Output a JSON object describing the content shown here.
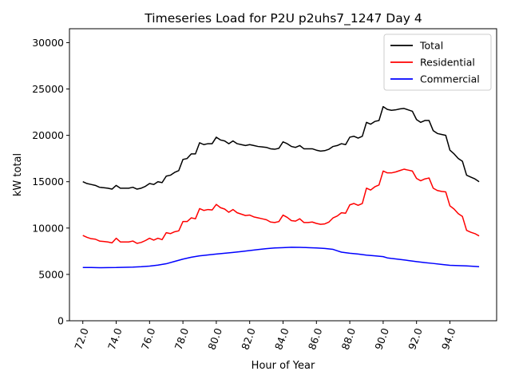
{
  "chart_data": {
    "type": "line",
    "title": "Timeseries Load for P2U p2uhs7_1247  Day 4",
    "xlabel": "Hour of Year",
    "ylabel": "kW total",
    "xlim": [
      71.2,
      96.8
    ],
    "ylim": [
      0,
      31500
    ],
    "xticks": [
      72,
      74,
      76,
      78,
      80,
      82,
      84,
      86,
      88,
      90,
      92,
      94
    ],
    "xtick_labels": [
      "72.0",
      "74.0",
      "76.0",
      "78.0",
      "80.0",
      "82.0",
      "84.0",
      "86.0",
      "88.0",
      "90.0",
      "92.0",
      "94.0"
    ],
    "yticks": [
      0,
      5000,
      10000,
      15000,
      20000,
      25000,
      30000
    ],
    "ytick_labels": [
      "0",
      "5000",
      "10000",
      "15000",
      "20000",
      "25000",
      "30000"
    ],
    "grid": false,
    "legend_position": "top-right",
    "series": [
      {
        "name": "Total",
        "color": "#000000",
        "points": [
          [
            72.0,
            15000
          ],
          [
            72.25,
            14800
          ],
          [
            72.5,
            14700
          ],
          [
            72.75,
            14600
          ],
          [
            73.0,
            14400
          ],
          [
            73.25,
            14350
          ],
          [
            73.5,
            14300
          ],
          [
            73.75,
            14200
          ],
          [
            74.0,
            14600
          ],
          [
            74.25,
            14300
          ],
          [
            74.5,
            14300
          ],
          [
            74.75,
            14300
          ],
          [
            75.0,
            14400
          ],
          [
            75.25,
            14200
          ],
          [
            75.5,
            14300
          ],
          [
            75.75,
            14500
          ],
          [
            76.0,
            14800
          ],
          [
            76.25,
            14700
          ],
          [
            76.5,
            15000
          ],
          [
            76.75,
            14900
          ],
          [
            77.0,
            15600
          ],
          [
            77.25,
            15700
          ],
          [
            77.5,
            16000
          ],
          [
            77.75,
            16200
          ],
          [
            78.0,
            17400
          ],
          [
            78.25,
            17500
          ],
          [
            78.5,
            18000
          ],
          [
            78.75,
            18000
          ],
          [
            79.0,
            19200
          ],
          [
            79.25,
            19000
          ],
          [
            79.5,
            19100
          ],
          [
            79.75,
            19100
          ],
          [
            80.0,
            19800
          ],
          [
            80.25,
            19500
          ],
          [
            80.5,
            19400
          ],
          [
            80.75,
            19100
          ],
          [
            81.0,
            19400
          ],
          [
            81.25,
            19100
          ],
          [
            81.5,
            19000
          ],
          [
            81.75,
            18900
          ],
          [
            82.0,
            19000
          ],
          [
            82.25,
            18900
          ],
          [
            82.5,
            18800
          ],
          [
            82.75,
            18750
          ],
          [
            83.0,
            18700
          ],
          [
            83.25,
            18550
          ],
          [
            83.5,
            18500
          ],
          [
            83.75,
            18600
          ],
          [
            84.0,
            19300
          ],
          [
            84.25,
            19100
          ],
          [
            84.5,
            18800
          ],
          [
            84.75,
            18700
          ],
          [
            85.0,
            18900
          ],
          [
            85.25,
            18550
          ],
          [
            85.5,
            18550
          ],
          [
            85.75,
            18550
          ],
          [
            86.0,
            18400
          ],
          [
            86.25,
            18300
          ],
          [
            86.5,
            18350
          ],
          [
            86.75,
            18500
          ],
          [
            87.0,
            18800
          ],
          [
            87.25,
            18900
          ],
          [
            87.5,
            19100
          ],
          [
            87.75,
            19000
          ],
          [
            88.0,
            19800
          ],
          [
            88.25,
            19900
          ],
          [
            88.5,
            19700
          ],
          [
            88.75,
            19900
          ],
          [
            89.0,
            21400
          ],
          [
            89.25,
            21200
          ],
          [
            89.5,
            21500
          ],
          [
            89.75,
            21600
          ],
          [
            90.0,
            23100
          ],
          [
            90.25,
            22800
          ],
          [
            90.5,
            22700
          ],
          [
            90.75,
            22750
          ],
          [
            91.0,
            22850
          ],
          [
            91.25,
            22900
          ],
          [
            91.5,
            22750
          ],
          [
            91.75,
            22600
          ],
          [
            92.0,
            21700
          ],
          [
            92.25,
            21400
          ],
          [
            92.5,
            21600
          ],
          [
            92.75,
            21600
          ],
          [
            93.0,
            20500
          ],
          [
            93.25,
            20200
          ],
          [
            93.5,
            20100
          ],
          [
            93.75,
            20000
          ],
          [
            94.0,
            18400
          ],
          [
            94.25,
            18000
          ],
          [
            94.5,
            17500
          ],
          [
            94.75,
            17200
          ],
          [
            95.0,
            15700
          ],
          [
            95.25,
            15500
          ],
          [
            95.5,
            15300
          ],
          [
            95.75,
            15000
          ]
        ]
      },
      {
        "name": "Residential",
        "color": "#ff0000",
        "points": [
          [
            72.0,
            9200
          ],
          [
            72.25,
            9000
          ],
          [
            72.5,
            8850
          ],
          [
            72.75,
            8800
          ],
          [
            73.0,
            8600
          ],
          [
            73.25,
            8550
          ],
          [
            73.5,
            8500
          ],
          [
            73.75,
            8400
          ],
          [
            74.0,
            8900
          ],
          [
            74.25,
            8500
          ],
          [
            74.5,
            8500
          ],
          [
            74.75,
            8500
          ],
          [
            75.0,
            8600
          ],
          [
            75.25,
            8350
          ],
          [
            75.5,
            8450
          ],
          [
            75.75,
            8650
          ],
          [
            76.0,
            8900
          ],
          [
            76.25,
            8700
          ],
          [
            76.5,
            8900
          ],
          [
            76.75,
            8750
          ],
          [
            77.0,
            9500
          ],
          [
            77.25,
            9400
          ],
          [
            77.5,
            9600
          ],
          [
            77.75,
            9700
          ],
          [
            78.0,
            10700
          ],
          [
            78.25,
            10700
          ],
          [
            78.5,
            11100
          ],
          [
            78.75,
            11000
          ],
          [
            79.0,
            12100
          ],
          [
            79.25,
            11900
          ],
          [
            79.5,
            12000
          ],
          [
            79.75,
            11950
          ],
          [
            80.0,
            12550
          ],
          [
            80.25,
            12200
          ],
          [
            80.5,
            12050
          ],
          [
            80.75,
            11700
          ],
          [
            81.0,
            12000
          ],
          [
            81.25,
            11650
          ],
          [
            81.5,
            11500
          ],
          [
            81.75,
            11350
          ],
          [
            82.0,
            11400
          ],
          [
            82.25,
            11200
          ],
          [
            82.5,
            11100
          ],
          [
            82.75,
            11000
          ],
          [
            83.0,
            10900
          ],
          [
            83.25,
            10650
          ],
          [
            83.5,
            10600
          ],
          [
            83.75,
            10700
          ],
          [
            84.0,
            11400
          ],
          [
            84.25,
            11150
          ],
          [
            84.5,
            10800
          ],
          [
            84.75,
            10750
          ],
          [
            85.0,
            11000
          ],
          [
            85.25,
            10600
          ],
          [
            85.5,
            10600
          ],
          [
            85.75,
            10650
          ],
          [
            86.0,
            10500
          ],
          [
            86.25,
            10400
          ],
          [
            86.5,
            10450
          ],
          [
            86.75,
            10650
          ],
          [
            87.0,
            11100
          ],
          [
            87.25,
            11300
          ],
          [
            87.5,
            11650
          ],
          [
            87.75,
            11600
          ],
          [
            88.0,
            12500
          ],
          [
            88.25,
            12650
          ],
          [
            88.5,
            12450
          ],
          [
            88.75,
            12650
          ],
          [
            89.0,
            14300
          ],
          [
            89.25,
            14100
          ],
          [
            89.5,
            14450
          ],
          [
            89.75,
            14650
          ],
          [
            90.0,
            16150
          ],
          [
            90.25,
            15950
          ],
          [
            90.5,
            15950
          ],
          [
            90.75,
            16050
          ],
          [
            91.0,
            16200
          ],
          [
            91.25,
            16350
          ],
          [
            91.5,
            16250
          ],
          [
            91.75,
            16150
          ],
          [
            92.0,
            15350
          ],
          [
            92.25,
            15100
          ],
          [
            92.5,
            15300
          ],
          [
            92.75,
            15400
          ],
          [
            93.0,
            14300
          ],
          [
            93.25,
            14050
          ],
          [
            93.5,
            13950
          ],
          [
            93.75,
            13900
          ],
          [
            94.0,
            12400
          ],
          [
            94.25,
            12050
          ],
          [
            94.5,
            11550
          ],
          [
            94.75,
            11250
          ],
          [
            95.0,
            9750
          ],
          [
            95.25,
            9550
          ],
          [
            95.5,
            9400
          ],
          [
            95.75,
            9150
          ]
        ]
      },
      {
        "name": "Commercial",
        "color": "#0000ff",
        "points": [
          [
            72.0,
            5750
          ],
          [
            72.5,
            5740
          ],
          [
            73.0,
            5720
          ],
          [
            73.5,
            5730
          ],
          [
            74.0,
            5740
          ],
          [
            74.5,
            5770
          ],
          [
            75.0,
            5790
          ],
          [
            75.5,
            5830
          ],
          [
            76.0,
            5900
          ],
          [
            76.5,
            6000
          ],
          [
            77.0,
            6150
          ],
          [
            77.5,
            6400
          ],
          [
            78.0,
            6650
          ],
          [
            78.5,
            6850
          ],
          [
            79.0,
            7000
          ],
          [
            79.5,
            7100
          ],
          [
            80.0,
            7200
          ],
          [
            80.5,
            7280
          ],
          [
            81.0,
            7370
          ],
          [
            81.5,
            7470
          ],
          [
            82.0,
            7570
          ],
          [
            82.5,
            7680
          ],
          [
            83.0,
            7780
          ],
          [
            83.5,
            7850
          ],
          [
            84.0,
            7890
          ],
          [
            84.5,
            7930
          ],
          [
            85.0,
            7920
          ],
          [
            85.5,
            7890
          ],
          [
            86.0,
            7850
          ],
          [
            86.5,
            7800
          ],
          [
            87.0,
            7700
          ],
          [
            87.25,
            7550
          ],
          [
            87.5,
            7400
          ],
          [
            88.0,
            7280
          ],
          [
            88.5,
            7200
          ],
          [
            89.0,
            7080
          ],
          [
            89.5,
            7000
          ],
          [
            90.0,
            6920
          ],
          [
            90.25,
            6780
          ],
          [
            90.5,
            6720
          ],
          [
            91.0,
            6620
          ],
          [
            91.5,
            6500
          ],
          [
            92.0,
            6380
          ],
          [
            92.5,
            6270
          ],
          [
            93.0,
            6180
          ],
          [
            93.5,
            6080
          ],
          [
            94.0,
            5980
          ],
          [
            94.5,
            5950
          ],
          [
            95.0,
            5920
          ],
          [
            95.5,
            5860
          ],
          [
            95.75,
            5830
          ]
        ]
      }
    ]
  }
}
